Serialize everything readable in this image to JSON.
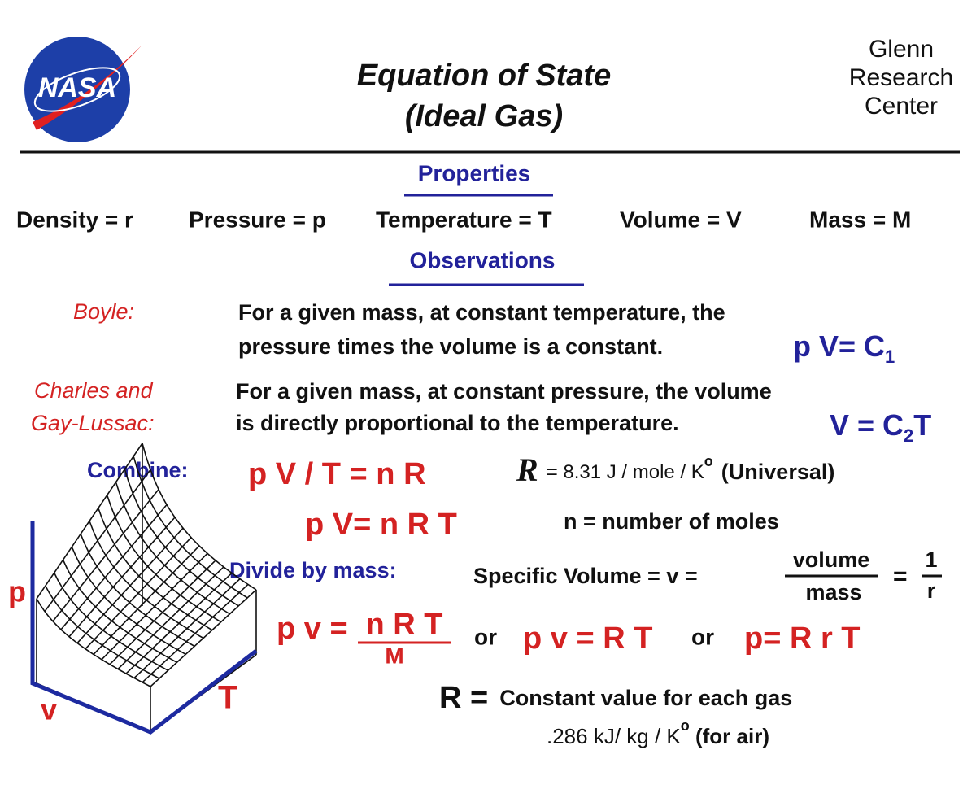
{
  "header": {
    "logo": "NASA",
    "title": [
      "Equation  of  State",
      "(Ideal  Gas)"
    ],
    "center": [
      "Glenn",
      "Research",
      "Center"
    ]
  },
  "properties": {
    "heading": "Properties",
    "items": [
      "Density = r",
      "Pressure = p",
      "Temperature = T",
      "Volume = V",
      "Mass = M"
    ]
  },
  "observations": {
    "heading": "Observations",
    "boyle": {
      "label": "Boyle:",
      "text": [
        "For a given mass, at constant temperature, the",
        "pressure times  the volume is  a constant."
      ],
      "formula": "p V= C",
      "subscript": "1"
    },
    "charles": {
      "label": [
        "Charles and",
        "Gay-Lussac:"
      ],
      "text": [
        "For a given mass, at constant pressure, the  volume",
        "is  directly  proportional  to  the  temperature."
      ],
      "formula": "V = C",
      "subscript": "2",
      "formula_end": "T"
    },
    "combine": {
      "label": "Combine:",
      "formula": "p V / T = n R",
      "constant_symbol": "R",
      "constant": "= 8.31 J / mole / K",
      "superscript": "o",
      "constant_note": "(Universal)"
    },
    "ideal_gas": {
      "formula": "p V= n R T",
      "moles": "n  =  number of moles"
    },
    "divide": {
      "label": "Divide  by  mass:",
      "specific_volume": "Specific  Volume = v =",
      "numerator": "volume",
      "denominator": "mass",
      "equals": "=",
      "density_numerator": "1",
      "density_denominator": "r"
    },
    "specific": {
      "lhs": "p v =",
      "numerator": "n R T",
      "denominator": "M",
      "or": [
        "or",
        "or"
      ],
      "forms": [
        "p v = R T",
        "p=  R r T"
      ]
    },
    "gas_constant": {
      "lhs": "R  =",
      "text": "Constant  value  for  each  gas",
      "value": ".286  kJ/  kg / K",
      "superscript": "o",
      "note": "  (for  air)"
    }
  },
  "graph": {
    "axes": [
      "p",
      "v",
      "T"
    ]
  }
}
